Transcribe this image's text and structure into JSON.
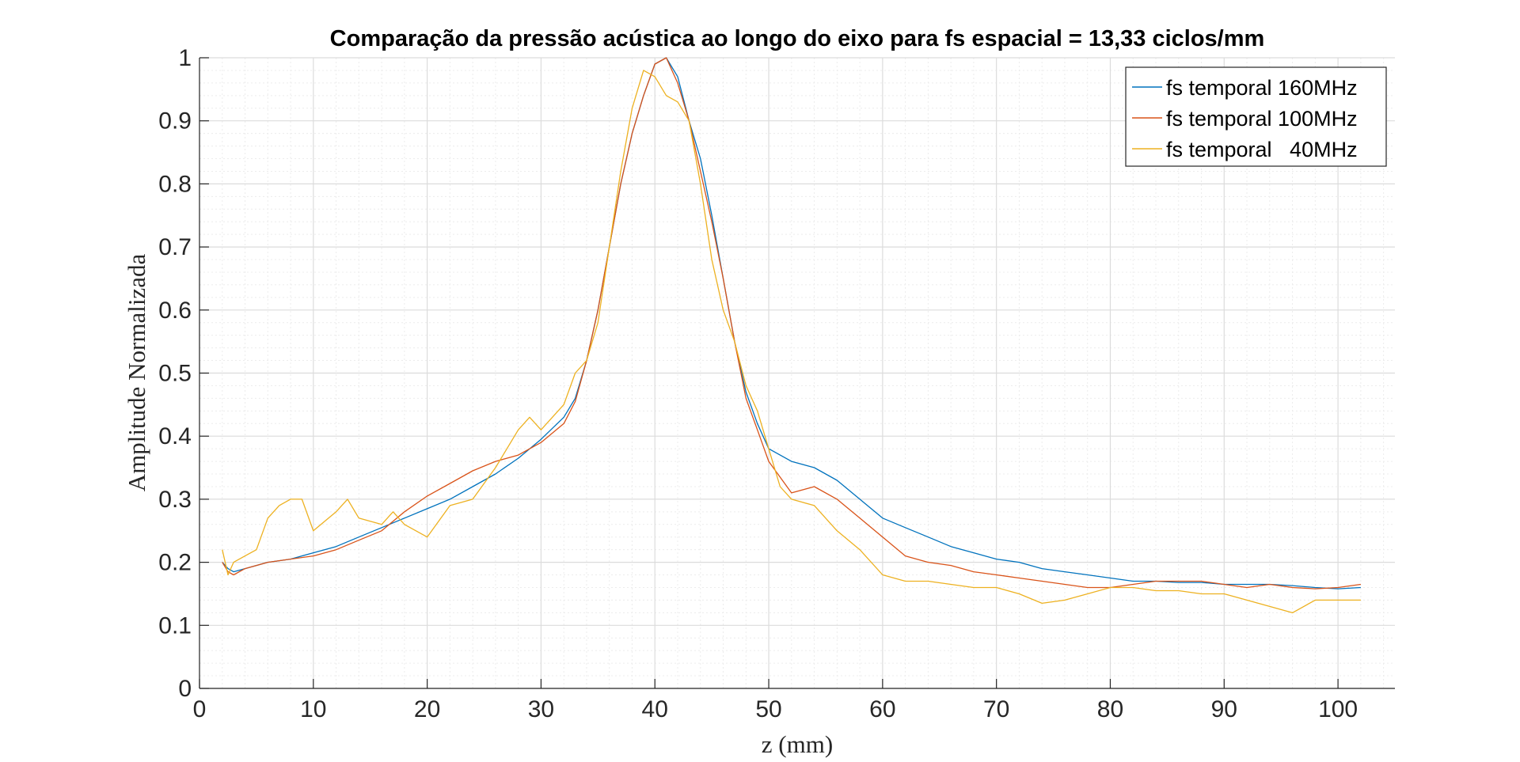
{
  "chart_data": {
    "type": "line",
    "title": "Comparação da pressão acústica ao longo do eixo para fs espacial = 13,33 ciclos/mm",
    "xlabel": "z (mm)",
    "ylabel": "Amplitude Normalizada",
    "xlim": [
      0,
      105
    ],
    "ylim": [
      0,
      1
    ],
    "xticks": [
      0,
      10,
      20,
      30,
      40,
      50,
      60,
      70,
      80,
      90,
      100
    ],
    "yticks": [
      0,
      0.1,
      0.2,
      0.3,
      0.4,
      0.5,
      0.6,
      0.7,
      0.8,
      0.9,
      1
    ],
    "xtick_labels": [
      "0",
      "10",
      "20",
      "30",
      "40",
      "50",
      "60",
      "70",
      "80",
      "90",
      "100"
    ],
    "ytick_labels": [
      "0",
      "0.1",
      "0.2",
      "0.3",
      "0.4",
      "0.5",
      "0.6",
      "0.7",
      "0.8",
      "0.9",
      "1"
    ],
    "grid": true,
    "minor_grid": true,
    "legend_position": "top-right",
    "series": [
      {
        "name": "fs temporal 160MHz",
        "color": "#0072BD",
        "x": [
          2,
          2.5,
          3,
          4,
          5,
          6,
          8,
          10,
          12,
          14,
          16,
          18,
          20,
          22,
          24,
          26,
          28,
          30,
          32,
          33,
          34,
          35,
          36,
          37,
          38,
          39,
          40,
          41,
          42,
          43,
          44,
          45,
          46,
          47,
          48,
          49,
          50,
          52,
          54,
          56,
          58,
          60,
          62,
          64,
          66,
          68,
          70,
          72,
          74,
          76,
          78,
          80,
          82,
          84,
          86,
          88,
          90,
          92,
          94,
          96,
          98,
          100,
          102
        ],
        "y": [
          0.2,
          0.19,
          0.185,
          0.19,
          0.195,
          0.2,
          0.205,
          0.215,
          0.225,
          0.24,
          0.255,
          0.27,
          0.285,
          0.3,
          0.32,
          0.34,
          0.365,
          0.395,
          0.43,
          0.46,
          0.52,
          0.6,
          0.7,
          0.8,
          0.88,
          0.94,
          0.99,
          1.0,
          0.97,
          0.9,
          0.84,
          0.75,
          0.65,
          0.55,
          0.47,
          0.42,
          0.38,
          0.36,
          0.35,
          0.33,
          0.3,
          0.27,
          0.255,
          0.24,
          0.225,
          0.215,
          0.205,
          0.2,
          0.19,
          0.185,
          0.18,
          0.175,
          0.17,
          0.17,
          0.168,
          0.168,
          0.165,
          0.165,
          0.165,
          0.163,
          0.16,
          0.158,
          0.16
        ]
      },
      {
        "name": "fs temporal 100MHz",
        "color": "#D95319",
        "x": [
          2,
          2.5,
          3,
          4,
          5,
          6,
          8,
          10,
          12,
          14,
          16,
          18,
          20,
          22,
          24,
          26,
          28,
          30,
          32,
          33,
          34,
          35,
          36,
          37,
          38,
          39,
          40,
          41,
          42,
          43,
          44,
          45,
          46,
          47,
          48,
          49,
          50,
          52,
          54,
          56,
          58,
          60,
          62,
          64,
          66,
          68,
          70,
          72,
          74,
          76,
          78,
          80,
          82,
          84,
          86,
          88,
          90,
          92,
          94,
          96,
          98,
          100,
          102
        ],
        "y": [
          0.2,
          0.185,
          0.18,
          0.19,
          0.195,
          0.2,
          0.205,
          0.21,
          0.22,
          0.235,
          0.25,
          0.28,
          0.305,
          0.325,
          0.345,
          0.36,
          0.37,
          0.39,
          0.42,
          0.455,
          0.52,
          0.6,
          0.7,
          0.8,
          0.88,
          0.94,
          0.99,
          1.0,
          0.96,
          0.9,
          0.82,
          0.74,
          0.65,
          0.55,
          0.46,
          0.41,
          0.36,
          0.31,
          0.32,
          0.3,
          0.27,
          0.24,
          0.21,
          0.2,
          0.195,
          0.185,
          0.18,
          0.175,
          0.17,
          0.165,
          0.16,
          0.16,
          0.165,
          0.17,
          0.17,
          0.17,
          0.165,
          0.16,
          0.165,
          0.16,
          0.158,
          0.16,
          0.165
        ]
      },
      {
        "name": "fs temporal   40MHz",
        "color": "#EDB120",
        "x": [
          2,
          2.5,
          3,
          4,
          5,
          6,
          7,
          8,
          9,
          10,
          12,
          13,
          14,
          16,
          17,
          18,
          20,
          22,
          24,
          26,
          28,
          29,
          30,
          32,
          33,
          34,
          35,
          36,
          37,
          38,
          39,
          40,
          41,
          42,
          43,
          44,
          45,
          46,
          47,
          48,
          49,
          50,
          51,
          52,
          54,
          56,
          58,
          60,
          62,
          64,
          66,
          68,
          70,
          72,
          74,
          76,
          78,
          80,
          82,
          84,
          86,
          88,
          90,
          92,
          94,
          96,
          98,
          100,
          102
        ],
        "y": [
          0.22,
          0.18,
          0.2,
          0.21,
          0.22,
          0.27,
          0.29,
          0.3,
          0.3,
          0.25,
          0.28,
          0.3,
          0.27,
          0.26,
          0.28,
          0.26,
          0.24,
          0.29,
          0.3,
          0.35,
          0.41,
          0.43,
          0.41,
          0.45,
          0.5,
          0.52,
          0.58,
          0.7,
          0.82,
          0.92,
          0.98,
          0.97,
          0.94,
          0.93,
          0.9,
          0.8,
          0.68,
          0.6,
          0.55,
          0.48,
          0.44,
          0.38,
          0.32,
          0.3,
          0.29,
          0.25,
          0.22,
          0.18,
          0.17,
          0.17,
          0.165,
          0.16,
          0.16,
          0.15,
          0.135,
          0.14,
          0.15,
          0.16,
          0.16,
          0.155,
          0.155,
          0.15,
          0.15,
          0.14,
          0.13,
          0.12,
          0.14,
          0.14,
          0.14
        ]
      }
    ]
  }
}
